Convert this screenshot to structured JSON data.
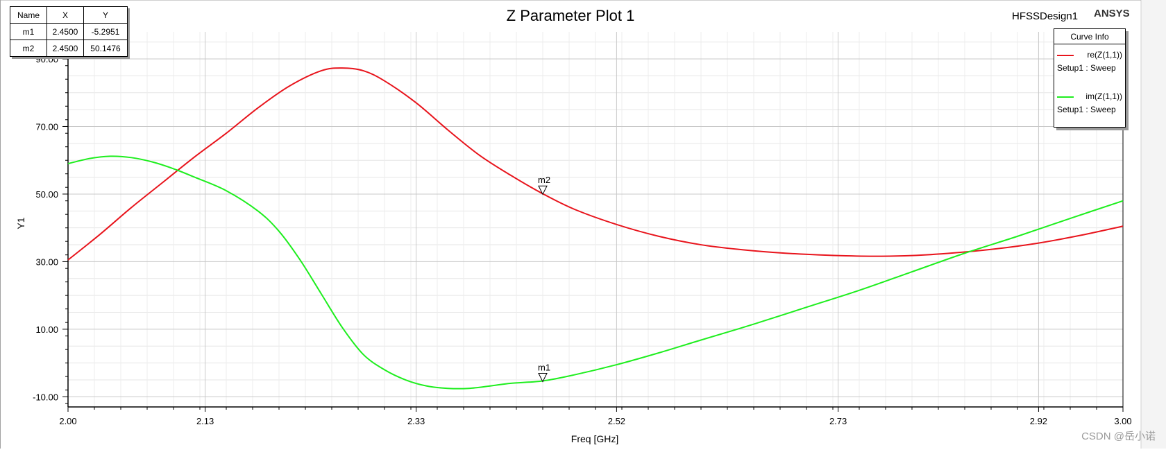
{
  "chart_data": {
    "type": "line",
    "title": "Z Parameter Plot 1",
    "design": "HFSSDesign1",
    "brand": "ANSYS",
    "xlabel": "Freq [GHz]",
    "ylabel": "Y1",
    "xlim": [
      2.0,
      3.0
    ],
    "ylim": [
      -13.0,
      98.0
    ],
    "xticks": [
      "2.00",
      "2.13",
      "2.33",
      "2.52",
      "2.73",
      "2.92",
      "3.00"
    ],
    "xtick_values": [
      2.0,
      2.13,
      2.33,
      2.52,
      2.73,
      2.92,
      3.0
    ],
    "yticks": [
      "-10.00",
      "10.00",
      "30.00",
      "50.00",
      "70.00",
      "90.00"
    ],
    "ytick_values": [
      -10,
      10,
      30,
      50,
      70,
      90
    ],
    "grid": true,
    "legend_position": "top-right",
    "legend_title": "Curve Info",
    "series": [
      {
        "name": "re(Z(1,1))",
        "setup": "Setup1 : Sweep",
        "color": "#e8141c",
        "x": [
          2.0,
          2.03,
          2.06,
          2.09,
          2.12,
          2.15,
          2.18,
          2.21,
          2.24,
          2.26,
          2.28,
          2.3,
          2.33,
          2.36,
          2.39,
          2.42,
          2.45,
          2.48,
          2.52,
          2.56,
          2.6,
          2.64,
          2.68,
          2.72,
          2.76,
          2.8,
          2.84,
          2.88,
          2.92,
          2.96,
          3.0
        ],
        "values": [
          30.5,
          38.0,
          46.0,
          53.5,
          61.0,
          68.0,
          75.5,
          82.0,
          86.5,
          87.3,
          86.5,
          83.5,
          77.0,
          69.0,
          61.5,
          55.5,
          50.1,
          45.5,
          41.0,
          37.5,
          35.0,
          33.5,
          32.5,
          31.9,
          31.6,
          31.8,
          32.6,
          33.8,
          35.5,
          37.8,
          40.5
        ]
      },
      {
        "name": "im(Z(1,1))",
        "setup": "Setup1 : Sweep",
        "color": "#1eee1e",
        "x": [
          2.0,
          2.02,
          2.04,
          2.06,
          2.08,
          2.1,
          2.12,
          2.15,
          2.18,
          2.2,
          2.22,
          2.24,
          2.26,
          2.28,
          2.3,
          2.32,
          2.34,
          2.36,
          2.38,
          2.4,
          2.42,
          2.45,
          2.48,
          2.52,
          2.56,
          2.6,
          2.65,
          2.7,
          2.75,
          2.8,
          2.85,
          2.9,
          2.95,
          3.0
        ],
        "values": [
          59.0,
          60.5,
          61.2,
          60.8,
          59.5,
          57.5,
          55.0,
          51.0,
          45.0,
          39.0,
          30.5,
          20.5,
          10.5,
          2.5,
          -2.0,
          -5.0,
          -6.8,
          -7.5,
          -7.5,
          -6.8,
          -6.0,
          -5.3,
          -3.5,
          -0.5,
          3.0,
          6.8,
          11.5,
          16.5,
          21.5,
          27.0,
          32.5,
          37.5,
          42.8,
          48.0
        ]
      }
    ],
    "markers": [
      {
        "label": "m1",
        "x": 2.45,
        "y": -5.2951,
        "series": 1
      },
      {
        "label": "m2",
        "x": 2.45,
        "y": 50.1476,
        "series": 0
      }
    ]
  },
  "marker_table": {
    "headers": [
      "Name",
      "X",
      "Y"
    ],
    "rows": [
      [
        "m1",
        "2.4500",
        "-5.2951"
      ],
      [
        "m2",
        "2.4500",
        "50.1476"
      ]
    ]
  },
  "watermark": "CSDN @岳小诺"
}
